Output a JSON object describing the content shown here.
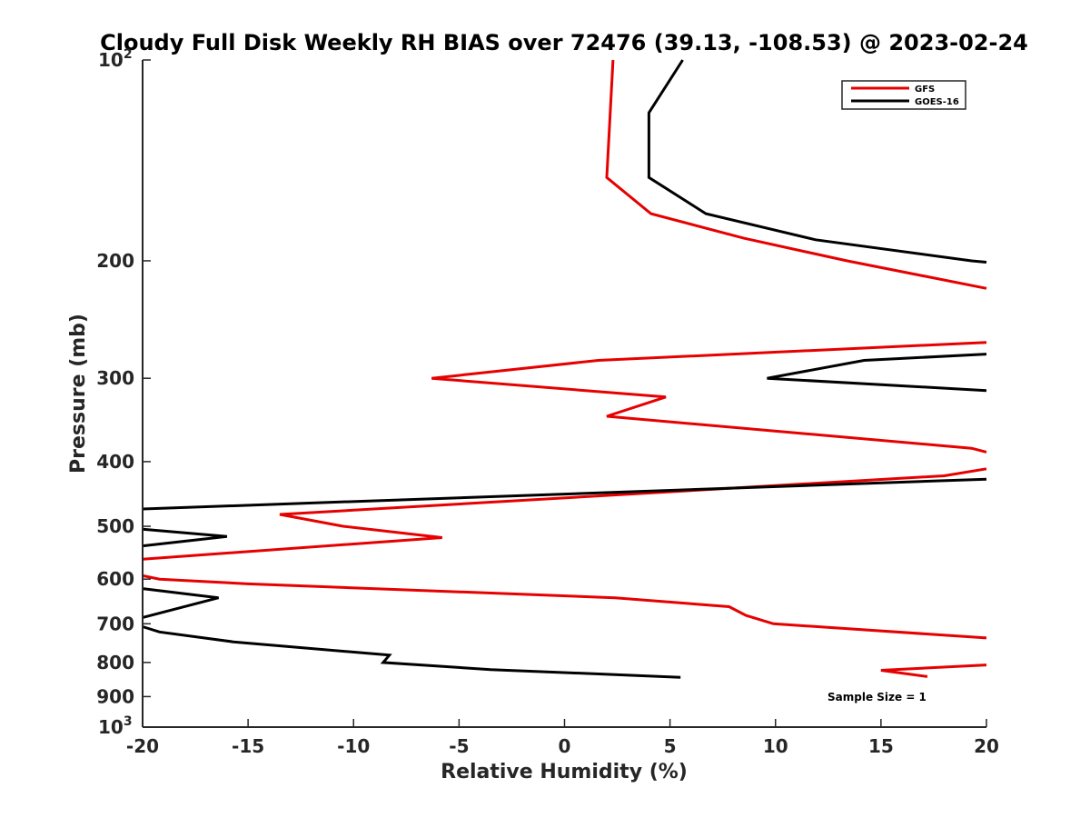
{
  "chart_data": {
    "type": "line",
    "title": "Cloudy Full Disk Weekly RH BIAS over 72476 (39.13, -108.53) @ 2023-02-24",
    "xlabel": "Relative Humidity (%)",
    "ylabel": "Pressure (mb)",
    "xlim": [
      -20,
      20
    ],
    "ylim": [
      100,
      1000
    ],
    "y_scale": "log",
    "y_reversed": true,
    "grid": false,
    "legend_position": "top-right",
    "x_ticks": [
      "-20",
      "-15",
      "-10",
      "-5",
      "0",
      "5",
      "10",
      "15",
      "20"
    ],
    "y_ticks": [
      {
        "base": "10",
        "exp": "2"
      },
      {
        "base": "200",
        "exp": ""
      },
      {
        "base": "300",
        "exp": ""
      },
      {
        "base": "400",
        "exp": ""
      },
      {
        "base": "500",
        "exp": ""
      },
      {
        "base": "600",
        "exp": ""
      },
      {
        "base": "700",
        "exp": ""
      },
      {
        "base": "800",
        "exp": ""
      },
      {
        "base": "900",
        "exp": ""
      },
      {
        "base": "10",
        "exp": "3"
      }
    ],
    "annotation": "Sample Size = 1",
    "series": [
      {
        "name": "GFS",
        "color": "#e60000",
        "points": [
          [
            2.3,
            100
          ],
          [
            2.0,
            150
          ],
          [
            4.1,
            170
          ],
          [
            8.5,
            185
          ],
          [
            13.4,
            200
          ],
          [
            20,
            220
          ],
          null,
          [
            20,
            265
          ],
          [
            1.6,
            282
          ],
          [
            -6.3,
            300
          ],
          [
            4.8,
            320
          ],
          [
            2.0,
            342
          ],
          [
            19.3,
            382
          ],
          [
            20,
            387
          ],
          null,
          [
            20,
            410
          ],
          [
            18.0,
            420
          ],
          [
            -13.5,
            480
          ],
          [
            -10.5,
            500
          ],
          [
            -5.8,
            520
          ],
          [
            -20,
            560
          ],
          null,
          [
            -20,
            593
          ],
          [
            -19.2,
            600
          ],
          [
            -15.0,
            610
          ],
          [
            2.4,
            640
          ],
          [
            7.8,
            660
          ],
          [
            8.6,
            680
          ],
          [
            9.9,
            700
          ],
          [
            20,
            735
          ],
          null,
          [
            20,
            807
          ],
          [
            15.0,
            822
          ],
          [
            17.2,
            840
          ]
        ]
      },
      {
        "name": "GOES-16",
        "color": "#000000",
        "points": [
          [
            5.6,
            100
          ],
          [
            4.0,
            120
          ],
          [
            4.0,
            150
          ],
          [
            6.7,
            170
          ],
          [
            11.9,
            186
          ],
          [
            19.3,
            200
          ],
          [
            20,
            201
          ],
          null,
          [
            20,
            276
          ],
          [
            14.2,
            282
          ],
          [
            9.6,
            300
          ],
          [
            20,
            313
          ],
          null,
          [
            20,
            425
          ],
          [
            -20,
            471
          ],
          null,
          [
            -20,
            505
          ],
          [
            -16.0,
            518
          ],
          [
            -20,
            535
          ],
          null,
          [
            -20,
            620
          ],
          [
            -16.4,
            640
          ],
          [
            -20,
            685
          ],
          null,
          [
            -20,
            707
          ],
          [
            -19.2,
            720
          ],
          [
            -15.7,
            745
          ],
          [
            -8.3,
            780
          ],
          [
            -8.6,
            800
          ],
          [
            -3.5,
            820
          ],
          [
            5.5,
            842
          ]
        ]
      }
    ]
  }
}
